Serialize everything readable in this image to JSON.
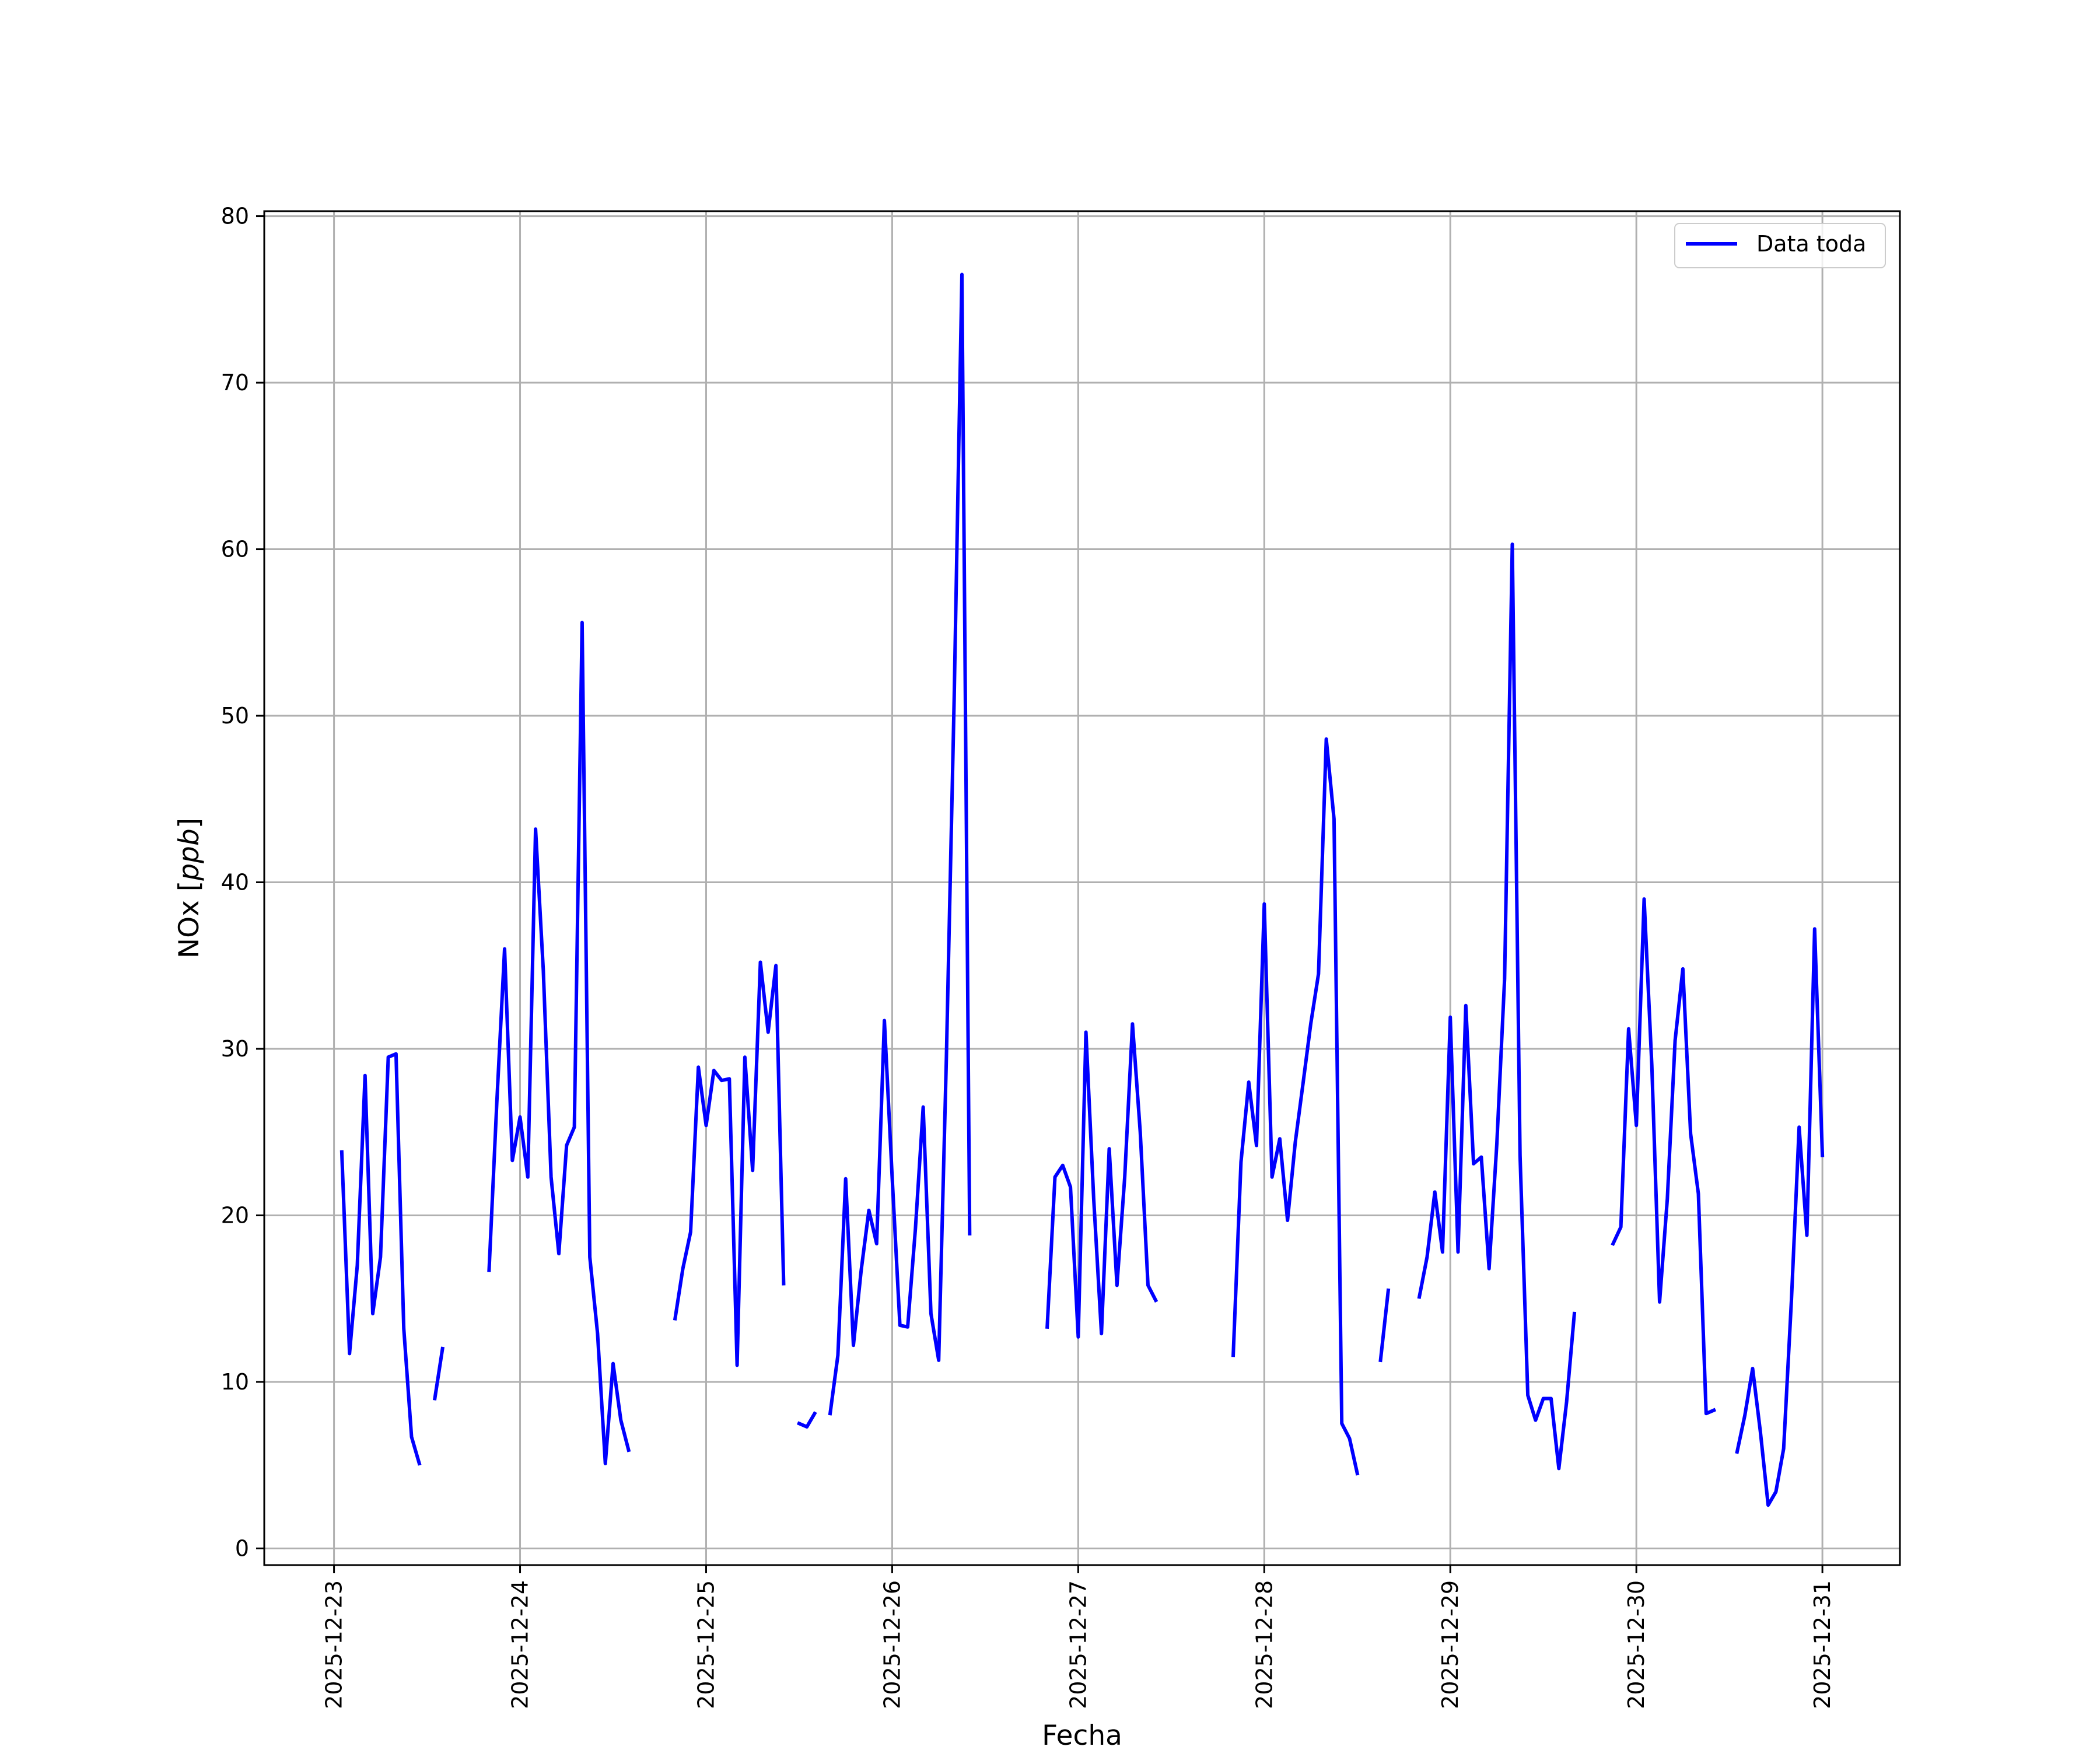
{
  "chart_data": {
    "type": "line",
    "title": "",
    "xlabel": "Fecha",
    "ylabel": "NOx [ppb]",
    "ylabel_parts": {
      "text": "NOx ",
      "unit": "ppb"
    },
    "xlim": [
      "2025-12-22 15:00",
      "2025-12-31 10:00"
    ],
    "ylim": [
      -1,
      80.3
    ],
    "x_ticks": [
      "2025-12-23",
      "2025-12-24",
      "2025-12-25",
      "2025-12-26",
      "2025-12-27",
      "2025-12-28",
      "2025-12-29",
      "2025-12-30",
      "2025-12-31"
    ],
    "y_ticks": [
      0,
      10,
      20,
      30,
      40,
      50,
      60,
      70,
      80
    ],
    "grid": true,
    "legend_position": "top-right",
    "colors": {
      "line": "#0000ff",
      "grid": "#b0b0b0",
      "axes": "#000000"
    },
    "series": [
      {
        "name": "Data toda",
        "segments": [
          [
            [
              "2025-12-23 01:00",
              23.8
            ],
            [
              "2025-12-23 02:00",
              11.7
            ],
            [
              "2025-12-23 03:00",
              17.0
            ],
            [
              "2025-12-23 04:00",
              28.4
            ],
            [
              "2025-12-23 05:00",
              14.1
            ],
            [
              "2025-12-23 06:00",
              17.5
            ],
            [
              "2025-12-23 07:00",
              29.5
            ],
            [
              "2025-12-23 08:00",
              29.7
            ],
            [
              "2025-12-23 09:00",
              13.2
            ],
            [
              "2025-12-23 10:00",
              6.7
            ],
            [
              "2025-12-23 11:00",
              5.1
            ]
          ],
          [
            [
              "2025-12-23 13:00",
              9.0
            ],
            [
              "2025-12-23 14:00",
              12.0
            ]
          ],
          [
            [
              "2025-12-23 20:00",
              16.7
            ],
            [
              "2025-12-23 21:00",
              26.8
            ],
            [
              "2025-12-23 22:00",
              36.0
            ],
            [
              "2025-12-23 23:00",
              23.3
            ],
            [
              "2025-12-24 00:00",
              25.9
            ],
            [
              "2025-12-24 01:00",
              22.3
            ],
            [
              "2025-12-24 02:00",
              43.2
            ],
            [
              "2025-12-24 03:00",
              34.7
            ],
            [
              "2025-12-24 04:00",
              22.3
            ],
            [
              "2025-12-24 05:00",
              17.7
            ],
            [
              "2025-12-24 06:00",
              24.2
            ],
            [
              "2025-12-24 07:00",
              25.3
            ],
            [
              "2025-12-24 08:00",
              55.6
            ],
            [
              "2025-12-24 09:00",
              17.5
            ],
            [
              "2025-12-24 10:00",
              12.9
            ],
            [
              "2025-12-24 11:00",
              5.1
            ],
            [
              "2025-12-24 12:00",
              11.1
            ],
            [
              "2025-12-24 13:00",
              7.7
            ],
            [
              "2025-12-24 14:00",
              5.9
            ]
          ],
          [
            [
              "2025-12-24 20:00",
              13.8
            ],
            [
              "2025-12-24 21:00",
              16.8
            ],
            [
              "2025-12-24 22:00",
              19.0
            ],
            [
              "2025-12-24 23:00",
              28.9
            ],
            [
              "2025-12-25 00:00",
              25.4
            ],
            [
              "2025-12-25 01:00",
              28.7
            ],
            [
              "2025-12-25 02:00",
              28.1
            ],
            [
              "2025-12-25 03:00",
              28.2
            ],
            [
              "2025-12-25 04:00",
              11.0
            ],
            [
              "2025-12-25 05:00",
              29.5
            ],
            [
              "2025-12-25 06:00",
              22.7
            ],
            [
              "2025-12-25 07:00",
              35.2
            ],
            [
              "2025-12-25 08:00",
              31.0
            ],
            [
              "2025-12-25 09:00",
              35.0
            ],
            [
              "2025-12-25 10:00",
              15.9
            ]
          ],
          [
            [
              "2025-12-25 12:00",
              7.5
            ],
            [
              "2025-12-25 13:00",
              7.3
            ],
            [
              "2025-12-25 14:00",
              8.1
            ]
          ],
          [
            [
              "2025-12-25 16:00",
              8.1
            ],
            [
              "2025-12-25 17:00",
              11.6
            ],
            [
              "2025-12-25 18:00",
              22.2
            ],
            [
              "2025-12-25 19:00",
              12.2
            ],
            [
              "2025-12-25 20:00",
              16.7
            ],
            [
              "2025-12-25 21:00",
              20.3
            ],
            [
              "2025-12-25 22:00",
              18.3
            ],
            [
              "2025-12-25 23:00",
              31.7
            ],
            [
              "2025-12-26 00:00",
              22.3
            ],
            [
              "2025-12-26 01:00",
              13.4
            ],
            [
              "2025-12-26 02:00",
              13.3
            ],
            [
              "2025-12-26 03:00",
              19.2
            ],
            [
              "2025-12-26 04:00",
              26.5
            ],
            [
              "2025-12-26 05:00",
              14.1
            ],
            [
              "2025-12-26 06:00",
              11.3
            ],
            [
              "2025-12-26 07:00",
              29.5
            ],
            [
              "2025-12-26 08:00",
              51.0
            ],
            [
              "2025-12-26 09:00",
              76.5
            ],
            [
              "2025-12-26 10:00",
              18.9
            ]
          ],
          [
            [
              "2025-12-26 20:00",
              13.3
            ],
            [
              "2025-12-26 21:00",
              22.3
            ],
            [
              "2025-12-26 22:00",
              23.0
            ],
            [
              "2025-12-26 23:00",
              21.7
            ],
            [
              "2025-12-27 00:00",
              12.7
            ],
            [
              "2025-12-27 01:00",
              31.0
            ],
            [
              "2025-12-27 02:00",
              21.0
            ],
            [
              "2025-12-27 03:00",
              12.9
            ],
            [
              "2025-12-27 04:00",
              24.0
            ],
            [
              "2025-12-27 05:00",
              15.8
            ],
            [
              "2025-12-27 06:00",
              22.3
            ],
            [
              "2025-12-27 07:00",
              31.5
            ],
            [
              "2025-12-27 08:00",
              25.0
            ],
            [
              "2025-12-27 09:00",
              15.8
            ],
            [
              "2025-12-27 10:00",
              14.9
            ]
          ],
          [
            [
              "2025-12-27 20:00",
              11.6
            ],
            [
              "2025-12-27 21:00",
              23.2
            ],
            [
              "2025-12-27 22:00",
              28.0
            ],
            [
              "2025-12-27 23:00",
              24.2
            ],
            [
              "2025-12-28 00:00",
              38.7
            ],
            [
              "2025-12-28 01:00",
              22.3
            ],
            [
              "2025-12-28 02:00",
              24.6
            ],
            [
              "2025-12-28 03:00",
              19.7
            ],
            [
              "2025-12-28 04:00",
              24.4
            ],
            [
              "2025-12-28 05:00",
              27.9
            ],
            [
              "2025-12-28 06:00",
              31.5
            ],
            [
              "2025-12-28 07:00",
              34.5
            ],
            [
              "2025-12-28 08:00",
              48.6
            ],
            [
              "2025-12-28 09:00",
              43.8
            ],
            [
              "2025-12-28 10:00",
              7.5
            ],
            [
              "2025-12-28 11:00",
              6.6
            ],
            [
              "2025-12-28 12:00",
              4.5
            ]
          ],
          [
            [
              "2025-12-28 15:00",
              11.3
            ],
            [
              "2025-12-28 16:00",
              15.5
            ]
          ],
          [
            [
              "2025-12-28 20:00",
              15.1
            ],
            [
              "2025-12-28 21:00",
              17.5
            ],
            [
              "2025-12-28 22:00",
              21.4
            ],
            [
              "2025-12-28 23:00",
              17.8
            ],
            [
              "2025-12-29 00:00",
              31.9
            ],
            [
              "2025-12-29 01:00",
              17.8
            ],
            [
              "2025-12-29 02:00",
              32.6
            ],
            [
              "2025-12-29 03:00",
              23.1
            ],
            [
              "2025-12-29 04:00",
              23.5
            ],
            [
              "2025-12-29 05:00",
              16.8
            ],
            [
              "2025-12-29 06:00",
              24.3
            ],
            [
              "2025-12-29 07:00",
              34.2
            ],
            [
              "2025-12-29 08:00",
              60.3
            ],
            [
              "2025-12-29 09:00",
              23.6
            ],
            [
              "2025-12-29 10:00",
              9.2
            ],
            [
              "2025-12-29 11:00",
              7.7
            ],
            [
              "2025-12-29 12:00",
              9.0
            ],
            [
              "2025-12-29 13:00",
              9.0
            ],
            [
              "2025-12-29 14:00",
              4.8
            ],
            [
              "2025-12-29 15:00",
              8.8
            ],
            [
              "2025-12-29 16:00",
              14.1
            ]
          ],
          [
            [
              "2025-12-29 21:00",
              18.3
            ],
            [
              "2025-12-29 22:00",
              19.3
            ],
            [
              "2025-12-29 23:00",
              31.2
            ],
            [
              "2025-12-30 00:00",
              25.4
            ],
            [
              "2025-12-30 01:00",
              39.0
            ],
            [
              "2025-12-30 02:00",
              29.0
            ],
            [
              "2025-12-30 03:00",
              14.8
            ],
            [
              "2025-12-30 04:00",
              21.0
            ],
            [
              "2025-12-30 05:00",
              30.5
            ],
            [
              "2025-12-30 06:00",
              34.8
            ],
            [
              "2025-12-30 07:00",
              24.9
            ],
            [
              "2025-12-30 08:00",
              21.3
            ],
            [
              "2025-12-30 09:00",
              8.1
            ],
            [
              "2025-12-30 10:00",
              8.3
            ]
          ],
          [
            [
              "2025-12-30 13:00",
              5.8
            ],
            [
              "2025-12-30 14:00",
              8.0
            ],
            [
              "2025-12-30 15:00",
              10.8
            ],
            [
              "2025-12-30 16:00",
              7.0
            ],
            [
              "2025-12-30 17:00",
              2.6
            ],
            [
              "2025-12-30 18:00",
              3.4
            ],
            [
              "2025-12-30 19:00",
              6.0
            ],
            [
              "2025-12-30 20:00",
              14.9
            ],
            [
              "2025-12-30 21:00",
              25.3
            ],
            [
              "2025-12-30 22:00",
              18.8
            ],
            [
              "2025-12-30 23:00",
              37.2
            ],
            [
              "2025-12-31 00:00",
              23.6
            ]
          ]
        ]
      }
    ]
  }
}
